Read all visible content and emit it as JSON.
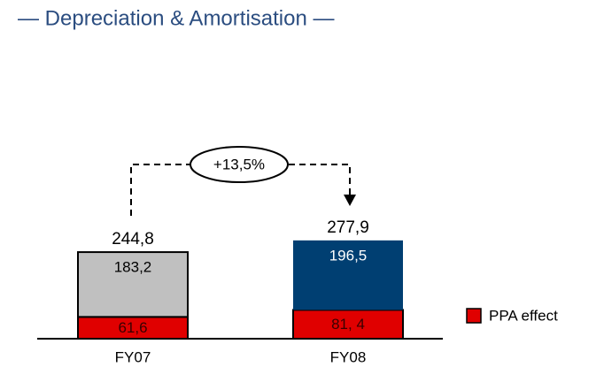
{
  "chart_data": {
    "type": "stacked_bar",
    "title": "— Depreciation & Amortisation —",
    "categories": [
      "FY07",
      "FY08"
    ],
    "series": [
      {
        "name": "PPA effect",
        "color": "#e00000",
        "values": [
          61.6,
          81.4
        ],
        "value_labels": [
          "61,6",
          "81, 4"
        ]
      },
      {
        "colors": [
          "#c0c0c0",
          "#003f72"
        ],
        "values": [
          183.2,
          196.5
        ],
        "value_labels": [
          "183,2",
          "196,5"
        ],
        "label_colors": [
          "#000000",
          "#ffffff"
        ]
      }
    ],
    "totals": [
      244.8,
      277.9
    ],
    "total_labels": [
      "244,8",
      "277,9"
    ],
    "annotation": "+13,5%"
  }
}
